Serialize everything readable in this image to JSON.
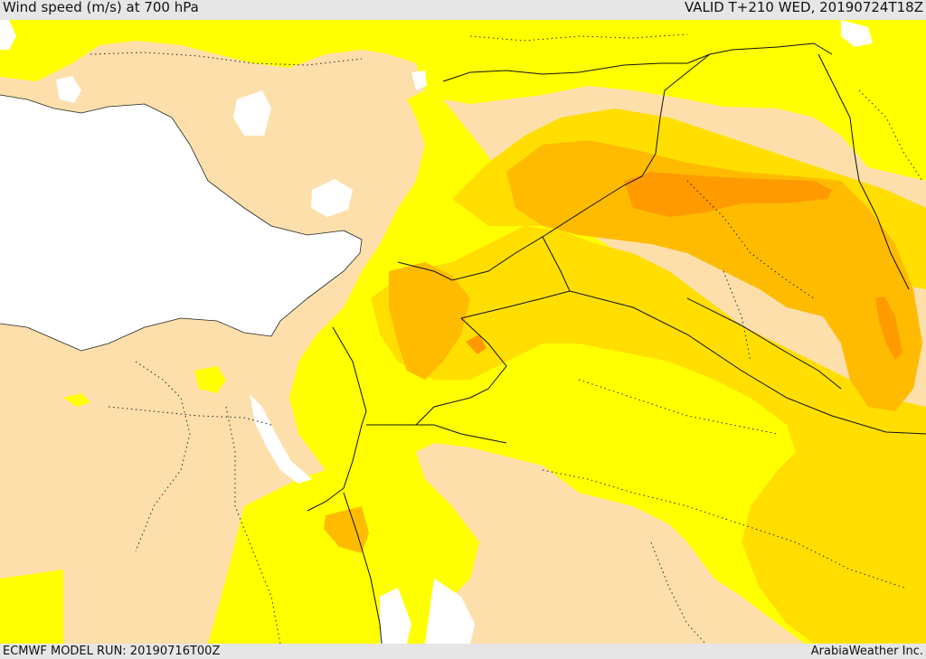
{
  "header": {
    "title": "Wind speed (m/s) at 700 hPa",
    "valid": "VALID T+210 WED, 20190724T18Z"
  },
  "footer": {
    "model_run": "ECMWF MODEL RUN: 20190716T00Z",
    "credit": "ArabiaWeather Inc."
  },
  "colors": {
    "sea": "#ffffff",
    "calm": "#fddfab",
    "light": "#ffff00",
    "moderate": "#ffde00",
    "fresh": "#ffbb00",
    "strong": "#ff9a00",
    "bars": "#e6e6e6"
  }
}
